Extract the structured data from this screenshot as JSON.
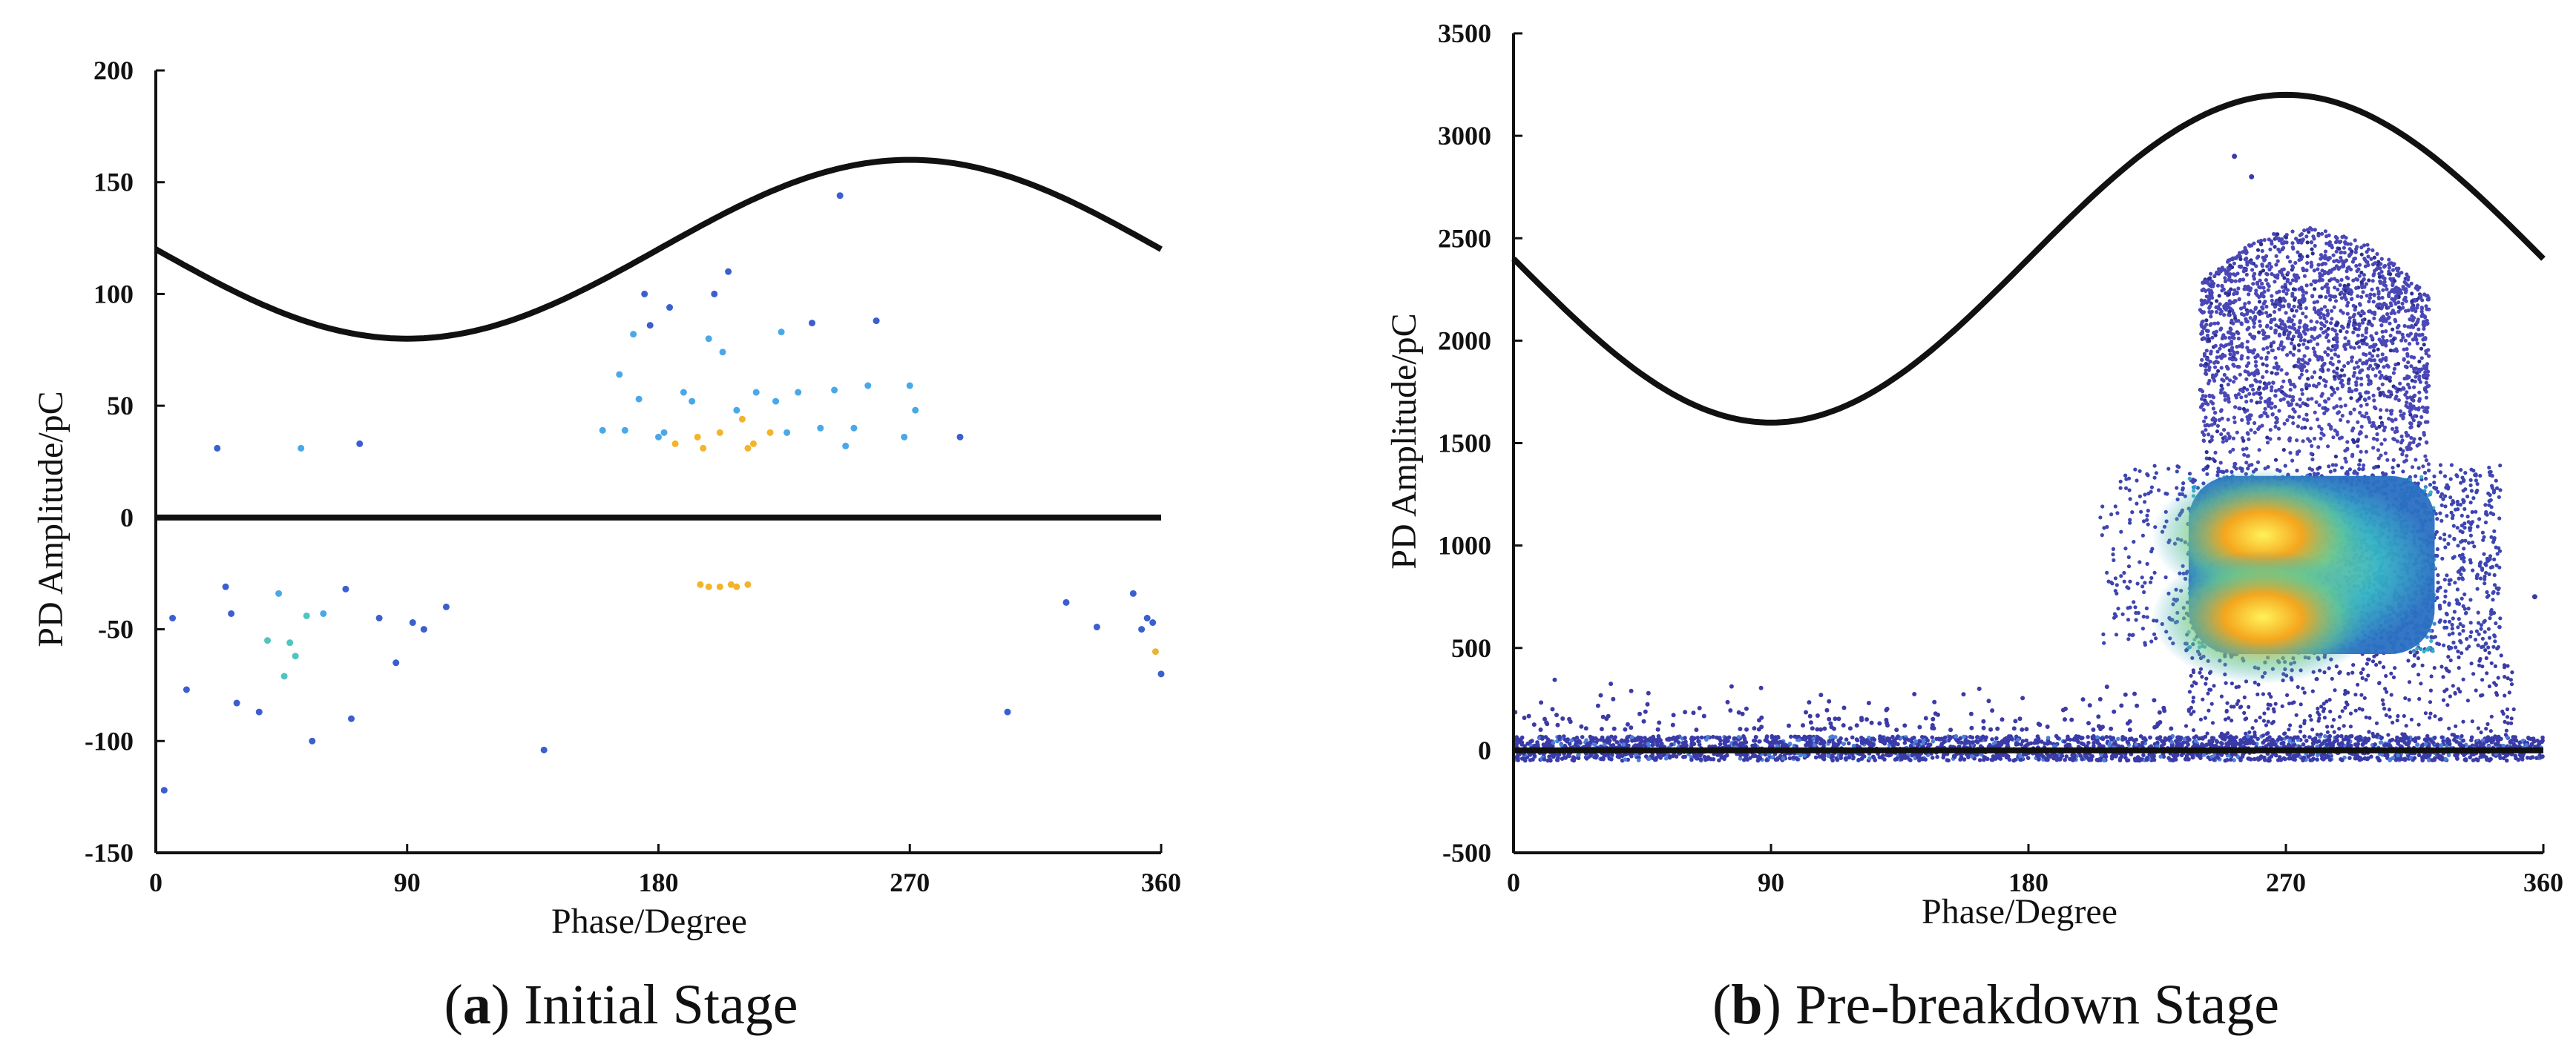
{
  "chart_data": [
    {
      "type": "scatter",
      "panel": "a",
      "caption_letter": "a",
      "caption_text": "Initial Stage",
      "xlabel": "Phase/Degree",
      "ylabel": "PD Amplitude/pC",
      "xlim": [
        0,
        360
      ],
      "ylim": [
        -150,
        200
      ],
      "xticks": [
        0,
        90,
        180,
        270,
        360
      ],
      "yticks": [
        -150,
        -100,
        -50,
        0,
        50,
        100,
        150,
        200
      ],
      "reference_sine": {
        "offset": 120,
        "amplitude": 40,
        "phase_shift": 0
      },
      "zero_line": 0,
      "grid": false,
      "series": [
        {
          "name": "PD pulses",
          "points": [
            [
              3,
              -122
            ],
            [
              6,
              -45
            ],
            [
              11,
              -77
            ],
            [
              22,
              31
            ],
            [
              25,
              -31
            ],
            [
              27,
              -43
            ],
            [
              29,
              -83
            ],
            [
              37,
              -87
            ],
            [
              40,
              -55
            ],
            [
              44,
              -34
            ],
            [
              46,
              -71
            ],
            [
              48,
              -56
            ],
            [
              50,
              -62
            ],
            [
              52,
              31
            ],
            [
              54,
              -44
            ],
            [
              56,
              -100
            ],
            [
              60,
              -43
            ],
            [
              68,
              -32
            ],
            [
              70,
              -90
            ],
            [
              73,
              33
            ],
            [
              80,
              -45
            ],
            [
              86,
              -65
            ],
            [
              92,
              -47
            ],
            [
              96,
              -50
            ],
            [
              104,
              -40
            ],
            [
              139,
              -104
            ],
            [
              160,
              39
            ],
            [
              166,
              64
            ],
            [
              168,
              39
            ],
            [
              171,
              82
            ],
            [
              173,
              53
            ],
            [
              175,
              100
            ],
            [
              177,
              86
            ],
            [
              180,
              36
            ],
            [
              182,
              38
            ],
            [
              184,
              94
            ],
            [
              186,
              33
            ],
            [
              189,
              56
            ],
            [
              192,
              52
            ],
            [
              194,
              36
            ],
            [
              196,
              31
            ],
            [
              198,
              80
            ],
            [
              200,
              100
            ],
            [
              202,
              38
            ],
            [
              203,
              74
            ],
            [
              205,
              110
            ],
            [
              208,
              48
            ],
            [
              210,
              44
            ],
            [
              212,
              31
            ],
            [
              214,
              33
            ],
            [
              215,
              56
            ],
            [
              220,
              38
            ],
            [
              222,
              52
            ],
            [
              224,
              83
            ],
            [
              226,
              38
            ],
            [
              230,
              56
            ],
            [
              235,
              87
            ],
            [
              238,
              40
            ],
            [
              243,
              57
            ],
            [
              245,
              144
            ],
            [
              247,
              32
            ],
            [
              250,
              40
            ],
            [
              255,
              59
            ],
            [
              258,
              88
            ],
            [
              270,
              59
            ],
            [
              272,
              48
            ],
            [
              268,
              36
            ],
            [
              288,
              36
            ],
            [
              305,
              -87
            ],
            [
              195,
              -30
            ],
            [
              198,
              -31
            ],
            [
              202,
              -31
            ],
            [
              206,
              -30
            ],
            [
              208,
              -31
            ],
            [
              212,
              -30
            ],
            [
              326,
              -38
            ],
            [
              337,
              -49
            ],
            [
              350,
              -34
            ],
            [
              355,
              -45
            ],
            [
              358,
              -60
            ],
            [
              360,
              -70
            ],
            [
              353,
              -50
            ],
            [
              357,
              -47
            ]
          ]
        }
      ]
    },
    {
      "type": "scatter",
      "panel": "b",
      "caption_letter": "b",
      "caption_text": "Pre-breakdown Stage",
      "xlabel": "Phase/Degree",
      "ylabel": "PD Amplitude/pC",
      "xlim": [
        0,
        360
      ],
      "ylim": [
        -500,
        3500
      ],
      "xticks": [
        0,
        90,
        180,
        270,
        360
      ],
      "yticks": [
        -500,
        0,
        500,
        1000,
        1500,
        2000,
        2500,
        3000,
        3500
      ],
      "reference_sine": {
        "offset": 2400,
        "amplitude": 800,
        "phase_shift": 0
      },
      "zero_line": 0,
      "grid": false,
      "density_clusters": [
        {
          "name": "upper hot spot",
          "center_phase": 262,
          "center_amplitude": 1050
        },
        {
          "name": "lower hot spot",
          "center_phase": 262,
          "center_amplitude": 650
        }
      ],
      "series": [
        {
          "name": "baseline noise band",
          "phase_range": [
            0,
            360
          ],
          "amplitude_range": [
            -50,
            70
          ]
        },
        {
          "name": "sparse low pulses",
          "phase_range": [
            0,
            230
          ],
          "amplitude_range": [
            100,
            350
          ]
        },
        {
          "name": "main cluster",
          "phase_range": [
            235,
            325
          ],
          "amplitude_range": [
            500,
            1300
          ]
        },
        {
          "name": "outer halo",
          "phase_range": [
            205,
            345
          ],
          "amplitude_range": [
            500,
            1400
          ]
        },
        {
          "name": "high-amplitude tail",
          "phase_range": [
            235,
            320
          ],
          "amplitude_range": [
            1300,
            2550
          ]
        },
        {
          "name": "outliers",
          "points": [
            [
              252,
              2900
            ],
            [
              258,
              2800
            ],
            [
              357,
              750
            ]
          ]
        }
      ]
    }
  ]
}
